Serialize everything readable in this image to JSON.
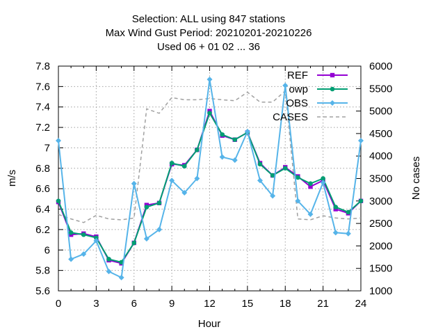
{
  "chart_data": {
    "type": "line",
    "title_lines": [
      "Selection: ALL using   847 stations",
      "Max Wind Gust   Period: 20210201-20210226",
      "Used  06  + 01 02 ... 36"
    ],
    "xlabel": "Hour",
    "ylabel": "m/s",
    "y2label": "No cases",
    "xlim": [
      0,
      24
    ],
    "ylim": [
      5.6,
      7.8
    ],
    "y2lim": [
      1000,
      6000
    ],
    "x_ticks": [
      0,
      3,
      6,
      9,
      12,
      15,
      18,
      21,
      24
    ],
    "y_ticks": [
      5.6,
      5.8,
      6,
      6.2,
      6.4,
      6.6,
      6.8,
      7,
      7.2,
      7.4,
      7.6,
      7.8
    ],
    "y_tick_labels": [
      "5.6",
      "5.8",
      "6",
      "6.2",
      "6.4",
      "6.6",
      "6.8",
      "7",
      "7.2",
      "7.4",
      "7.6",
      "7.8"
    ],
    "y2_ticks": [
      1000,
      1500,
      2000,
      2500,
      3000,
      3500,
      4000,
      4500,
      5000,
      5500,
      6000
    ],
    "grid": true,
    "legend_position": "top-right",
    "x": [
      0,
      1,
      2,
      3,
      4,
      5,
      6,
      7,
      8,
      9,
      10,
      11,
      12,
      13,
      14,
      15,
      16,
      17,
      18,
      19,
      20,
      21,
      22,
      23,
      24
    ],
    "series": [
      {
        "name": "REF",
        "color": "#9400d3",
        "marker": "square",
        "axis": "y",
        "values": [
          6.47,
          6.15,
          6.16,
          6.13,
          5.9,
          5.87,
          6.07,
          6.44,
          6.46,
          6.84,
          6.83,
          6.98,
          7.36,
          7.12,
          7.08,
          7.15,
          6.85,
          6.73,
          6.81,
          6.72,
          6.62,
          6.68,
          6.4,
          6.36,
          6.48
        ]
      },
      {
        "name": "owp",
        "color": "#009e73",
        "marker": "star",
        "axis": "y",
        "values": [
          6.48,
          6.17,
          6.15,
          6.12,
          5.91,
          5.88,
          6.07,
          6.42,
          6.46,
          6.85,
          6.82,
          6.98,
          7.34,
          7.13,
          7.08,
          7.15,
          6.84,
          6.73,
          6.8,
          6.71,
          6.65,
          6.7,
          6.42,
          6.37,
          6.48
        ]
      },
      {
        "name": "OBS",
        "color": "#56b4e9",
        "marker": "diamond",
        "axis": "y",
        "values": [
          7.07,
          5.91,
          5.96,
          6.09,
          5.79,
          5.73,
          6.65,
          6.11,
          6.2,
          6.68,
          6.56,
          6.7,
          7.67,
          6.91,
          6.88,
          7.16,
          6.68,
          6.53,
          7.61,
          6.48,
          6.35,
          6.66,
          6.17,
          6.16,
          7.07
        ]
      },
      {
        "name": "CASES",
        "color": "#a0a0a0",
        "dashed": true,
        "axis": "y2",
        "values": [
          2700,
          2600,
          2520,
          2680,
          2600,
          2580,
          2620,
          5050,
          4950,
          5300,
          5250,
          5250,
          5280,
          5250,
          5230,
          5420,
          5200,
          5200,
          5450,
          2600,
          2580,
          2670,
          2620,
          2600,
          2620
        ]
      }
    ]
  }
}
